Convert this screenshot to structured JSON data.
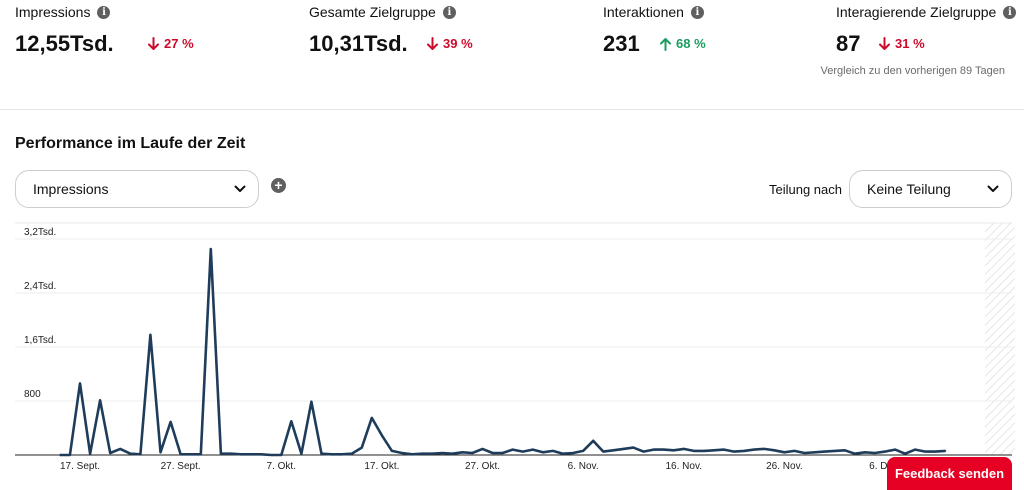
{
  "metrics": [
    {
      "label": "Impressions",
      "value": "12,55Tsd.",
      "change": "27 %",
      "direction": "down"
    },
    {
      "label": "Gesamte Zielgruppe",
      "value": "10,31Tsd.",
      "change": "39 %",
      "direction": "down"
    },
    {
      "label": "Interaktionen",
      "value": "231",
      "change": "68 %",
      "direction": "up"
    },
    {
      "label": "Interagierende Zielgruppe",
      "value": "87",
      "change": "31 %",
      "direction": "down"
    }
  ],
  "comparison_note": "Vergleich zu den vorherigen 89 Tagen",
  "section_title": "Performance im Laufe der Zeit",
  "metric_select": {
    "value": "Impressions"
  },
  "split": {
    "label": "Teilung nach",
    "value": "Keine Teilung"
  },
  "feedback_label": "Feedback senden",
  "colors": {
    "line": "#1f3d5a",
    "down": "#cc0b2c",
    "up": "#1a9c5e",
    "feedback": "#e60023"
  },
  "icons": {
    "info": "info-icon",
    "add": "add-circle-icon",
    "chevron": "chevron-down-icon",
    "arrow_down": "arrow-down-icon",
    "arrow_up": "arrow-up-icon"
  },
  "chart_data": {
    "type": "line",
    "y_ticks": [
      {
        "value": 800,
        "label": "800"
      },
      {
        "value": 1600,
        "label": "1,6Tsd."
      },
      {
        "value": 2400,
        "label": "2,4Tsd."
      },
      {
        "value": 3200,
        "label": "3,2Tsd."
      }
    ],
    "x_ticks": [
      {
        "date": "2023-09-17",
        "label": "17. Sept."
      },
      {
        "date": "2023-09-27",
        "label": "27. Sept."
      },
      {
        "date": "2023-10-07",
        "label": "7. Okt."
      },
      {
        "date": "2023-10-17",
        "label": "17. Okt."
      },
      {
        "date": "2023-10-27",
        "label": "27. Okt."
      },
      {
        "date": "2023-11-06",
        "label": "6. Nov."
      },
      {
        "date": "2023-11-16",
        "label": "16. Nov."
      },
      {
        "date": "2023-11-26",
        "label": "26. Nov."
      },
      {
        "date": "2023-12-06",
        "label": "6. Dez."
      }
    ],
    "ylim": [
      0,
      3200
    ],
    "grid": true,
    "series": [
      {
        "x": [
          "2023-09-15",
          "2023-09-16",
          "2023-09-17",
          "2023-09-18",
          "2023-09-19",
          "2023-09-20",
          "2023-09-21",
          "2023-09-22",
          "2023-09-23",
          "2023-09-24",
          "2023-09-25",
          "2023-09-26",
          "2023-09-27",
          "2023-09-28",
          "2023-09-29",
          "2023-09-30",
          "2023-10-01",
          "2023-10-02",
          "2023-10-03",
          "2023-10-04",
          "2023-10-05",
          "2023-10-06",
          "2023-10-07",
          "2023-10-08",
          "2023-10-09",
          "2023-10-10",
          "2023-10-11",
          "2023-10-12",
          "2023-10-13",
          "2023-10-14",
          "2023-10-15",
          "2023-10-16",
          "2023-10-17",
          "2023-10-18",
          "2023-10-19",
          "2023-10-20",
          "2023-10-21",
          "2023-10-22",
          "2023-10-23",
          "2023-10-24",
          "2023-10-25",
          "2023-10-26",
          "2023-10-27",
          "2023-10-28",
          "2023-10-29",
          "2023-10-30",
          "2023-10-31",
          "2023-11-01",
          "2023-11-02",
          "2023-11-03",
          "2023-11-04",
          "2023-11-05",
          "2023-11-06",
          "2023-11-07",
          "2023-11-08",
          "2023-11-09",
          "2023-11-10",
          "2023-11-11",
          "2023-11-12",
          "2023-11-13",
          "2023-11-14",
          "2023-11-15",
          "2023-11-16",
          "2023-11-17",
          "2023-11-18",
          "2023-11-19",
          "2023-11-20",
          "2023-11-21",
          "2023-11-22",
          "2023-11-23",
          "2023-11-24",
          "2023-11-25",
          "2023-11-26",
          "2023-11-27",
          "2023-11-28",
          "2023-11-29",
          "2023-11-30",
          "2023-12-01",
          "2023-12-02",
          "2023-12-03",
          "2023-12-04",
          "2023-12-05",
          "2023-12-06",
          "2023-12-07",
          "2023-12-08",
          "2023-12-09",
          "2023-12-10",
          "2023-12-11",
          "2023-12-12"
        ],
        "values": [
          0,
          0,
          1060,
          20,
          810,
          30,
          90,
          20,
          10,
          1780,
          40,
          490,
          10,
          10,
          10,
          3050,
          20,
          20,
          10,
          10,
          10,
          0,
          0,
          500,
          20,
          790,
          20,
          10,
          10,
          20,
          110,
          550,
          290,
          60,
          30,
          10,
          20,
          20,
          30,
          20,
          40,
          30,
          90,
          30,
          30,
          80,
          50,
          80,
          40,
          60,
          20,
          30,
          60,
          210,
          50,
          70,
          90,
          110,
          50,
          80,
          80,
          70,
          90,
          60,
          60,
          70,
          80,
          50,
          60,
          80,
          90,
          70,
          40,
          60,
          30,
          40,
          50,
          60,
          70,
          20,
          40,
          30,
          50,
          80,
          20,
          80,
          50,
          50,
          60
        ]
      }
    ]
  }
}
